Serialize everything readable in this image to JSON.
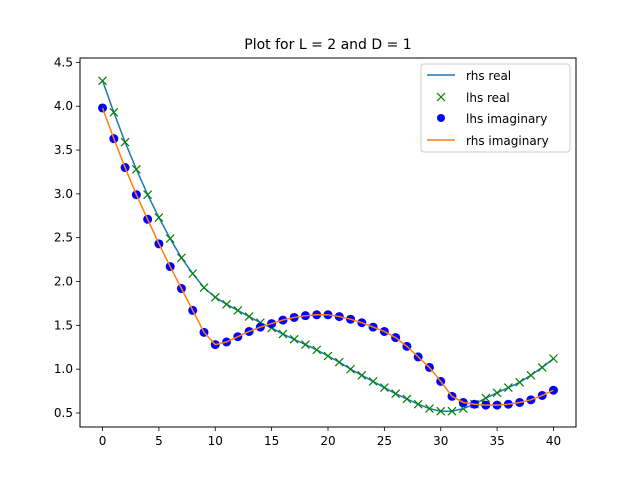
{
  "chart_data": {
    "type": "line",
    "title": "Plot for L = 2 and D = 1",
    "xlabel": "",
    "ylabel": "",
    "xlim": [
      -2,
      42
    ],
    "ylim": [
      0.34,
      4.55
    ],
    "xticks": [
      0,
      5,
      10,
      15,
      20,
      25,
      30,
      35,
      40
    ],
    "yticks": [
      0.5,
      1.0,
      1.5,
      2.0,
      2.5,
      3.0,
      3.5,
      4.0,
      4.5
    ],
    "ytick_labels": [
      "0.5",
      "1.0",
      "1.5",
      "2.0",
      "2.5",
      "3.0",
      "3.5",
      "4.0",
      "4.5"
    ],
    "grid": false,
    "legend_position": "top-right",
    "x": [
      0,
      1,
      2,
      3,
      4,
      5,
      6,
      7,
      8,
      9,
      10,
      11,
      12,
      13,
      14,
      15,
      16,
      17,
      18,
      19,
      20,
      21,
      22,
      23,
      24,
      25,
      26,
      27,
      28,
      29,
      30,
      31,
      32,
      33,
      34,
      35,
      36,
      37,
      38,
      39,
      40
    ],
    "series": [
      {
        "name": "rhs real",
        "style": "line",
        "color": "#1f77b4",
        "values": [
          4.29,
          3.93,
          3.59,
          3.28,
          2.99,
          2.73,
          2.49,
          2.27,
          2.09,
          1.93,
          1.82,
          1.74,
          1.67,
          1.6,
          1.53,
          1.47,
          1.4,
          1.34,
          1.28,
          1.22,
          1.15,
          1.08,
          1.0,
          0.93,
          0.86,
          0.79,
          0.72,
          0.66,
          0.6,
          0.55,
          0.52,
          0.52,
          0.55,
          0.6,
          0.67,
          0.73,
          0.79,
          0.85,
          0.93,
          1.02,
          1.12
        ]
      },
      {
        "name": "lhs real",
        "style": "marker-x",
        "color": "#008000",
        "values": [
          4.29,
          3.93,
          3.59,
          3.28,
          2.99,
          2.73,
          2.49,
          2.27,
          2.09,
          1.93,
          1.82,
          1.74,
          1.67,
          1.6,
          1.53,
          1.47,
          1.4,
          1.34,
          1.28,
          1.22,
          1.15,
          1.08,
          1.0,
          0.93,
          0.86,
          0.79,
          0.72,
          0.66,
          0.6,
          0.55,
          0.52,
          0.52,
          0.55,
          0.6,
          0.67,
          0.73,
          0.79,
          0.85,
          0.93,
          1.02,
          1.12
        ]
      },
      {
        "name": "lhs imaginary",
        "style": "marker-dot",
        "color": "#0000ff",
        "values": [
          3.98,
          3.63,
          3.3,
          2.99,
          2.71,
          2.43,
          2.17,
          1.92,
          1.67,
          1.42,
          1.28,
          1.31,
          1.37,
          1.43,
          1.48,
          1.52,
          1.56,
          1.59,
          1.61,
          1.62,
          1.62,
          1.6,
          1.57,
          1.53,
          1.48,
          1.43,
          1.36,
          1.26,
          1.14,
          1.02,
          0.86,
          0.69,
          0.62,
          0.6,
          0.59,
          0.59,
          0.6,
          0.62,
          0.65,
          0.7,
          0.76
        ]
      },
      {
        "name": "rhs imaginary",
        "style": "line",
        "color": "#ff7f0e",
        "values": [
          3.98,
          3.63,
          3.3,
          2.99,
          2.71,
          2.43,
          2.17,
          1.92,
          1.67,
          1.42,
          1.28,
          1.31,
          1.37,
          1.43,
          1.48,
          1.52,
          1.56,
          1.59,
          1.61,
          1.62,
          1.62,
          1.6,
          1.57,
          1.53,
          1.48,
          1.43,
          1.36,
          1.26,
          1.14,
          1.02,
          0.86,
          0.69,
          0.62,
          0.6,
          0.59,
          0.59,
          0.6,
          0.62,
          0.65,
          0.7,
          0.76
        ]
      }
    ]
  }
}
